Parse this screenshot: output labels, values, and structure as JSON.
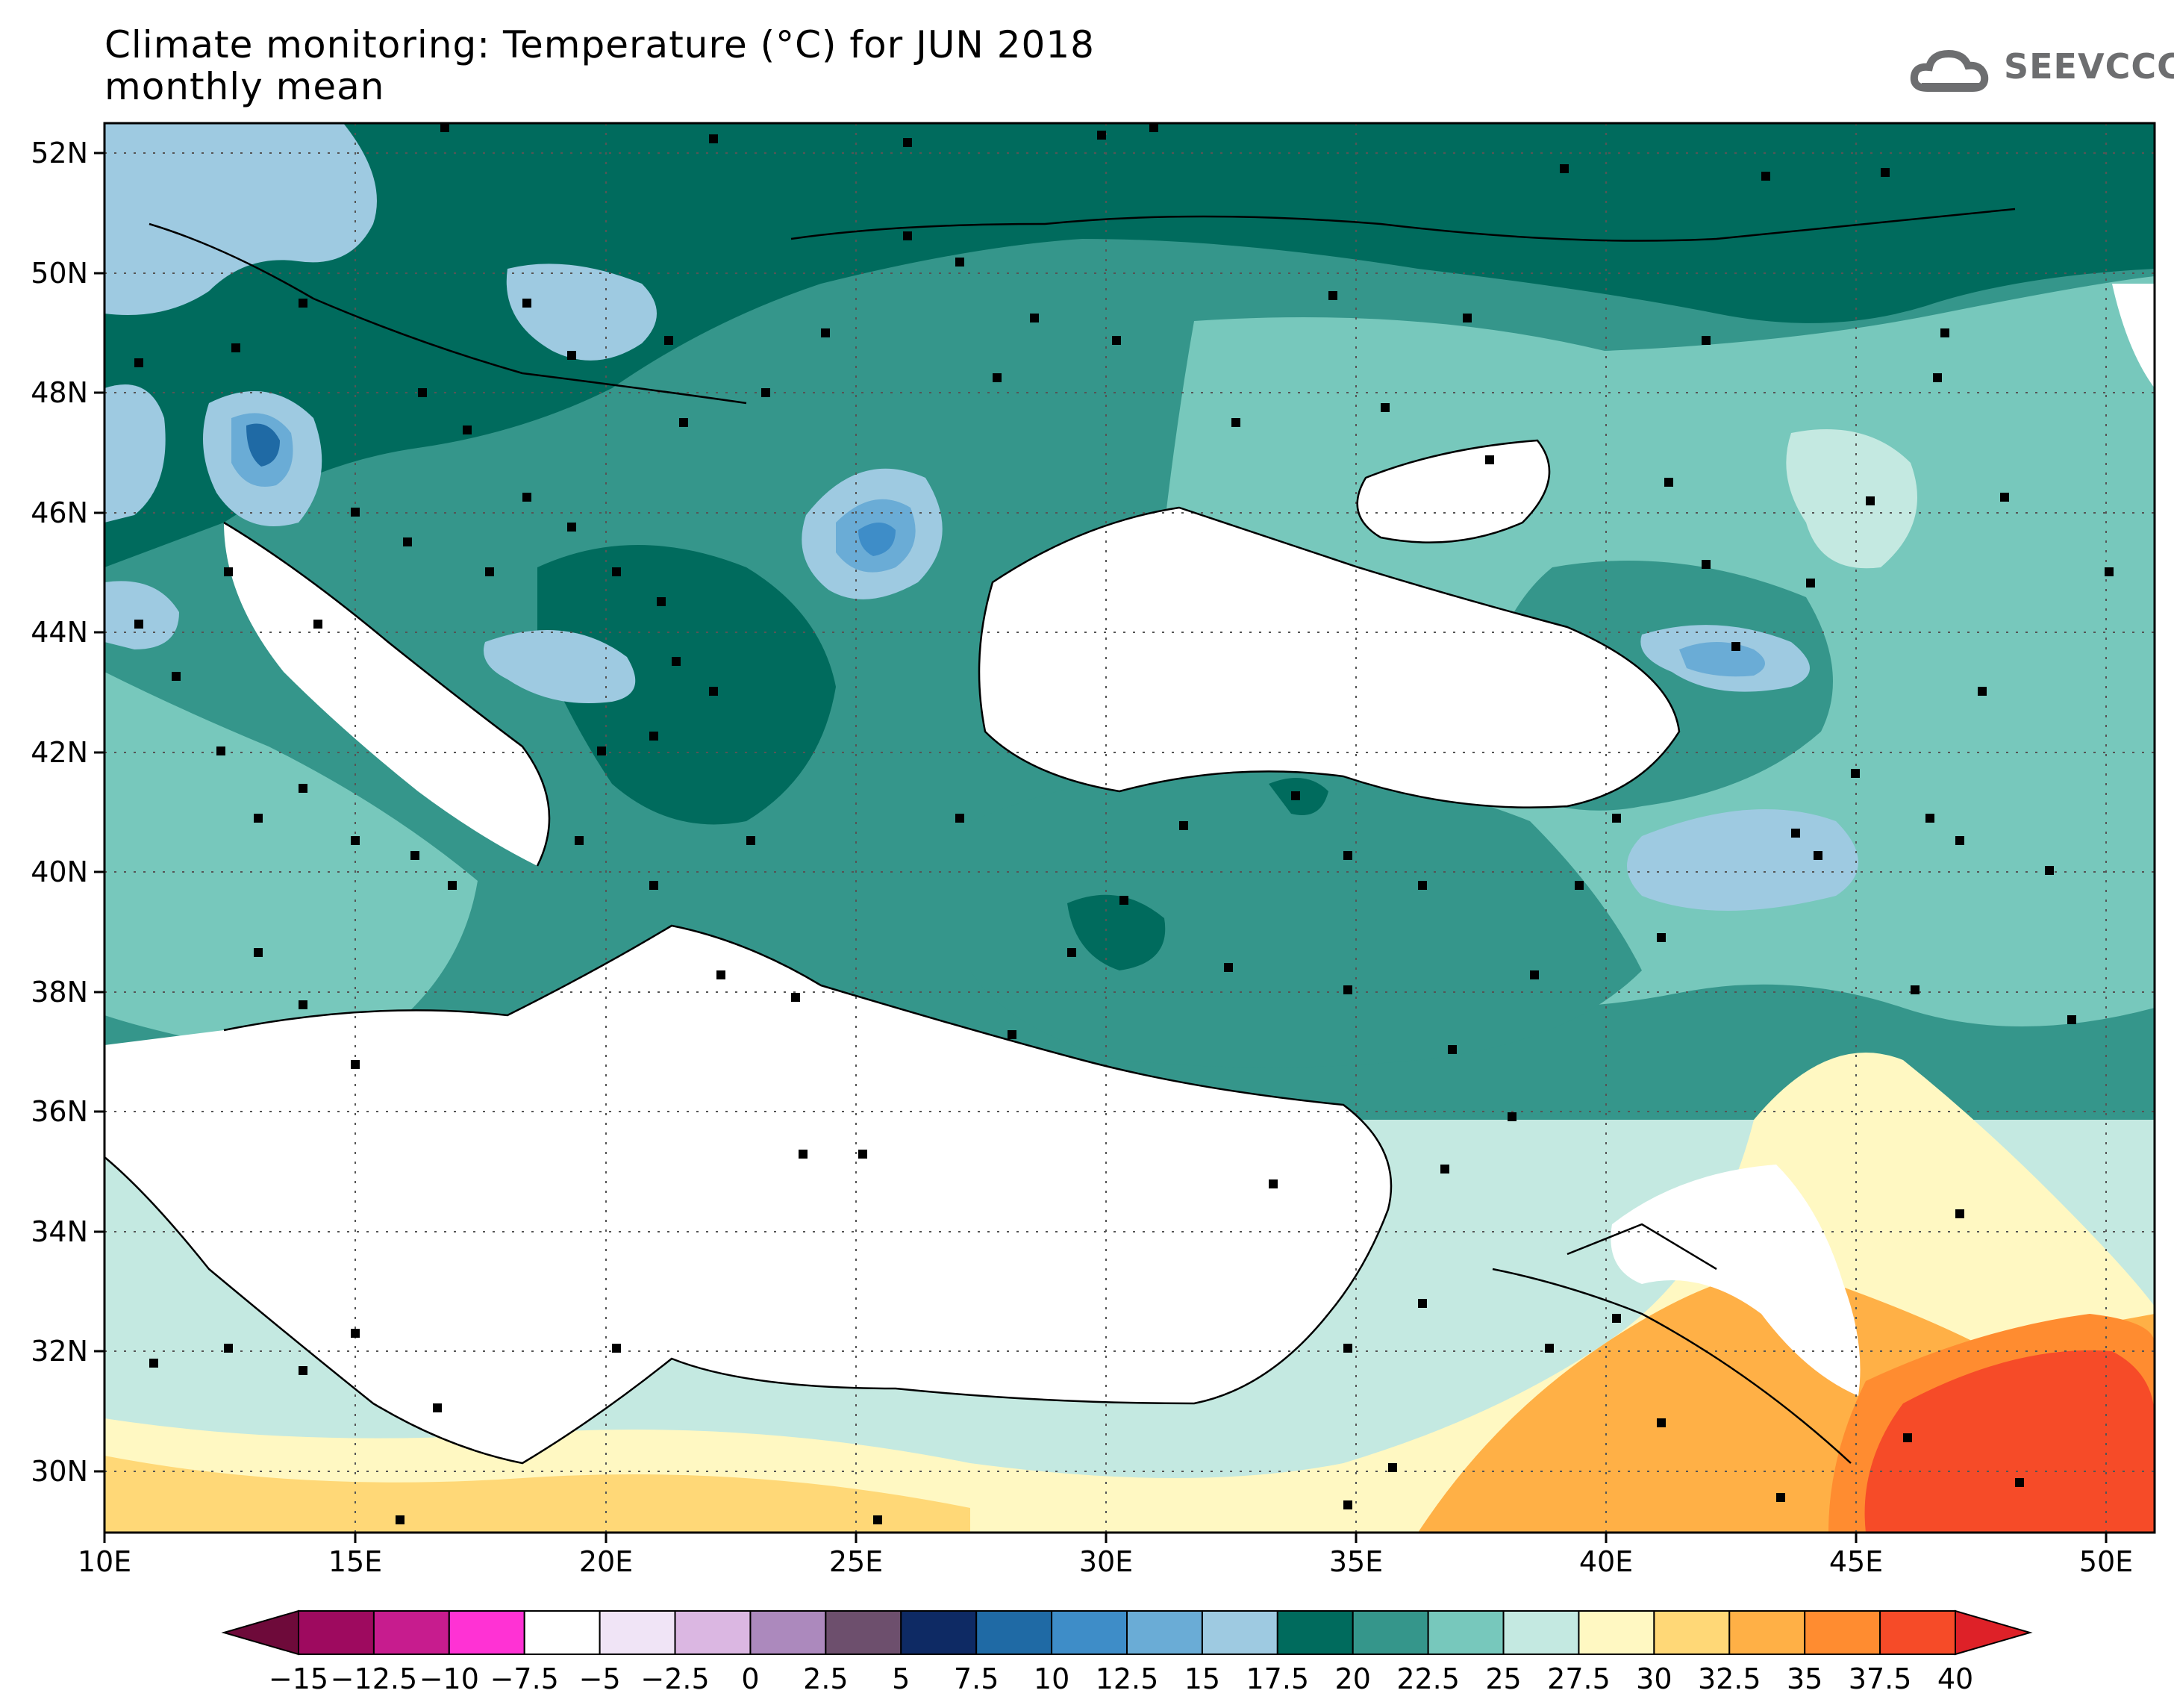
{
  "title": {
    "line1": "Climate monitoring: Temperature (°C) for JUN 2018",
    "line2": "monthly mean"
  },
  "logo": {
    "text": "SEEVCCC",
    "icon": "cloud-icon"
  },
  "map": {
    "lat_labels": [
      "52N",
      "50N",
      "48N",
      "46N",
      "44N",
      "42N",
      "40N",
      "38N",
      "36N",
      "34N",
      "32N",
      "30N"
    ],
    "lon_labels": [
      "10E",
      "15E",
      "20E",
      "25E",
      "30E",
      "35E",
      "40E",
      "45E",
      "50E"
    ],
    "lon_range": [
      10,
      51
    ],
    "lat_range": [
      29,
      52.5
    ],
    "grid": "dotted",
    "stations": "black squares"
  },
  "colorbar": {
    "labels": [
      "−15",
      "−12.5",
      "−10",
      "−7.5",
      "−5",
      "−2.5",
      "0",
      "2.5",
      "5",
      "7.5",
      "10",
      "12.5",
      "15",
      "17.5",
      "20",
      "22.5",
      "25",
      "27.5",
      "30",
      "32.5",
      "35",
      "37.5",
      "40"
    ],
    "colors": [
      "#9e0a5f",
      "#c71c8e",
      "#ff32d4",
      "#ffffff",
      "#f0e4f6",
      "#dbb7e2",
      "#ac89bd",
      "#6d4f6d",
      "#0e2a64",
      "#1f6aa5",
      "#3e8dc8",
      "#6aacd6",
      "#9ecae1",
      "#006b5d",
      "#35968b",
      "#77c8bc",
      "#c4e9e1",
      "#fff8c2",
      "#ffd877",
      "#ffb046",
      "#ff8c30",
      "#f64b28"
    ],
    "under_color": "#6e0a3a",
    "over_color": "#de2128"
  }
}
